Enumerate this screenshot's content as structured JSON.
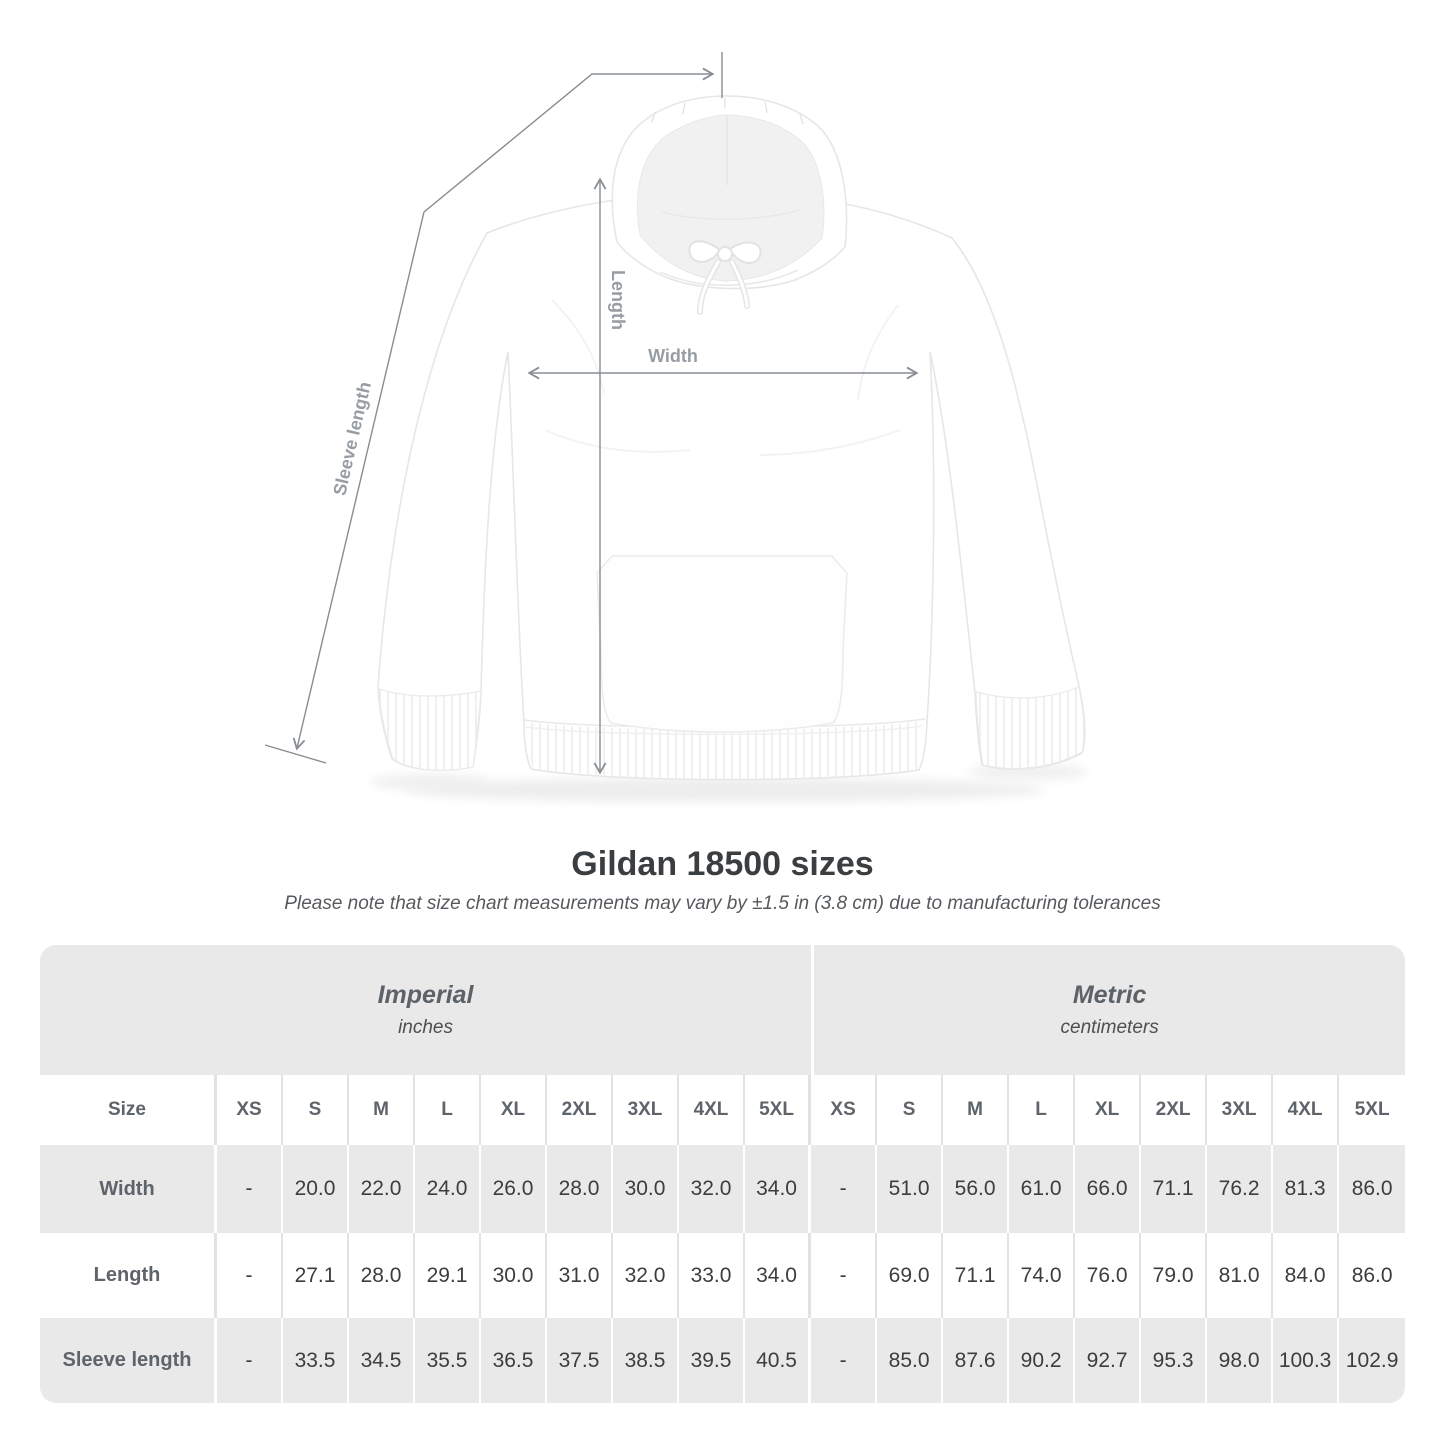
{
  "diagram": {
    "labels": {
      "length": "Length",
      "width": "Width",
      "sleeve_length": "Sleeve length"
    },
    "line_color": "#878d93",
    "label_color": "#979da3"
  },
  "heading": {
    "title": "Gildan 18500 sizes",
    "subtitle": "Please note that size chart measurements may vary by ±1.5 in (3.8 cm) due to manufacturing tolerances"
  },
  "size_table": {
    "background": "#e9e9e9",
    "groups": [
      {
        "label": "Imperial",
        "unit": "inches"
      },
      {
        "label": "Metric",
        "unit": "centimeters"
      }
    ],
    "corner_label": "Size",
    "sizes": [
      "XS",
      "S",
      "M",
      "L",
      "XL",
      "2XL",
      "3XL",
      "4XL",
      "5XL"
    ],
    "rows": [
      {
        "label": "Width",
        "imperial": [
          "-",
          "20.0",
          "22.0",
          "24.0",
          "26.0",
          "28.0",
          "30.0",
          "32.0",
          "34.0"
        ],
        "metric": [
          "-",
          "51.0",
          "56.0",
          "61.0",
          "66.0",
          "71.1",
          "76.2",
          "81.3",
          "86.0"
        ]
      },
      {
        "label": "Length",
        "imperial": [
          "-",
          "27.1",
          "28.0",
          "29.1",
          "30.0",
          "31.0",
          "32.0",
          "33.0",
          "34.0"
        ],
        "metric": [
          "-",
          "69.0",
          "71.1",
          "74.0",
          "76.0",
          "79.0",
          "81.0",
          "84.0",
          "86.0"
        ]
      },
      {
        "label": "Sleeve length",
        "imperial": [
          "-",
          "33.5",
          "34.5",
          "35.5",
          "36.5",
          "37.5",
          "38.5",
          "39.5",
          "40.5"
        ],
        "metric": [
          "-",
          "85.0",
          "87.6",
          "90.2",
          "92.7",
          "95.3",
          "98.0",
          "100.3",
          "102.9"
        ]
      }
    ]
  }
}
